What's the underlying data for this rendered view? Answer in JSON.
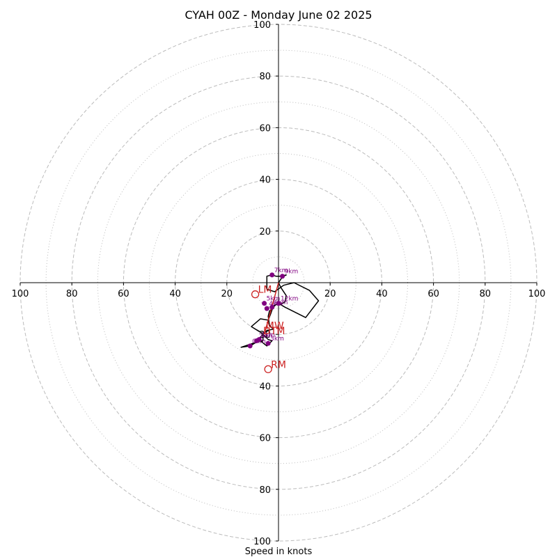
{
  "chart_data": {
    "type": "scatter",
    "title": "CYAH 00Z - Monday June 02 2025",
    "xlabel": "Speed in knots",
    "axis_range": [
      -100,
      100
    ],
    "x_ticks": [
      {
        "value": -100,
        "label": "100"
      },
      {
        "value": -80,
        "label": "80"
      },
      {
        "value": -60,
        "label": "60"
      },
      {
        "value": -40,
        "label": "40"
      },
      {
        "value": -20,
        "label": "20"
      },
      {
        "value": 20,
        "label": "20"
      },
      {
        "value": 40,
        "label": "40"
      },
      {
        "value": 60,
        "label": "60"
      },
      {
        "value": 80,
        "label": "80"
      },
      {
        "value": 100,
        "label": "100"
      }
    ],
    "y_ticks": [
      {
        "value": 100,
        "label": "100"
      },
      {
        "value": 80,
        "label": "80"
      },
      {
        "value": 60,
        "label": "60"
      },
      {
        "value": 40,
        "label": "40"
      },
      {
        "value": 20,
        "label": "20"
      },
      {
        "value": -20,
        "label": "20"
      },
      {
        "value": -40,
        "label": "40"
      },
      {
        "value": -60,
        "label": "60"
      },
      {
        "value": -80,
        "label": "80"
      },
      {
        "value": -100,
        "label": "100"
      }
    ],
    "rings_major": [
      20,
      40,
      60,
      80,
      100
    ],
    "rings_minor": [
      10,
      30,
      50,
      70,
      90
    ],
    "colors": {
      "hodograph": "#000000",
      "height_markers": "#800080",
      "storm_motion": "#cc2222",
      "rings": "#bbbbbb",
      "axes": "#000000"
    },
    "hodograph": [
      [
        -4.5,
        0
      ],
      [
        -4.5,
        -2.5
      ],
      [
        -1.5,
        -3.5
      ],
      [
        2,
        -1
      ],
      [
        6,
        0
      ],
      [
        12,
        -3
      ],
      [
        15.5,
        -7
      ],
      [
        10.5,
        -13.5
      ],
      [
        2.5,
        -9.5
      ],
      [
        0,
        -8
      ],
      [
        -2,
        -9
      ],
      [
        -3,
        -12
      ],
      [
        -4,
        -14.5
      ],
      [
        -7,
        -14
      ],
      [
        -10.5,
        -17
      ],
      [
        -6.5,
        -19.5
      ],
      [
        -5,
        -21
      ],
      [
        -4,
        -22
      ],
      [
        -2.5,
        -22.5
      ],
      [
        -4.5,
        -24.5
      ],
      [
        -7,
        -22.5
      ],
      [
        -10,
        -23.5
      ],
      [
        -14.5,
        -25
      ],
      [
        -11,
        -24.5
      ],
      [
        -8.5,
        -23
      ],
      [
        -6,
        -22.5
      ],
      [
        -6,
        -20
      ],
      [
        -4.5,
        -18.5
      ],
      [
        -2,
        -18
      ],
      [
        -3.5,
        -16.5
      ],
      [
        -4,
        -13
      ],
      [
        -3.5,
        -11
      ],
      [
        -1,
        -8.5
      ],
      [
        1.5,
        -8
      ],
      [
        2.5,
        -7.5
      ],
      [
        3,
        -5
      ],
      [
        1,
        -2
      ],
      [
        0,
        0
      ],
      [
        1,
        1.5
      ],
      [
        2,
        2.5
      ],
      [
        3,
        3
      ],
      [
        1,
        2.5
      ],
      [
        -1,
        2.5
      ],
      [
        -2.5,
        3
      ],
      [
        -4.5,
        2.5
      ],
      [
        -4.5,
        0
      ]
    ],
    "height_points": [
      {
        "label": "7km",
        "x": -2.5,
        "y": 3.0
      },
      {
        "label": "9km",
        "x": 1.5,
        "y": 2.5
      },
      {
        "label": "12km",
        "x": 0.0,
        "y": -8.0
      },
      {
        "label": "5km",
        "x": -5.5,
        "y": -8.0
      },
      {
        "label": "4km",
        "x": -4.5,
        "y": -10.0
      },
      {
        "label": "6km",
        "x": -2.5,
        "y": -9.5
      },
      {
        "label": "1km",
        "x": -7.5,
        "y": -22.0
      },
      {
        "label": "2km",
        "x": -8.5,
        "y": -22.5
      },
      {
        "label": "3km",
        "x": -4.0,
        "y": -23.5
      },
      {
        "label": "0km",
        "x": -11.0,
        "y": -24.5
      }
    ],
    "storm_motion_points": [
      {
        "label": "LM",
        "x": -9.0,
        "y": -4.5,
        "marker": "open-circle"
      },
      {
        "label": "RM",
        "x": -4.0,
        "y": -33.5,
        "marker": "open-circle"
      },
      {
        "label": "MW",
        "x": -6.0,
        "y": -18.5,
        "marker": "none"
      },
      {
        "label": "DTM",
        "x": -7.0,
        "y": -20.5,
        "marker": "none"
      }
    ],
    "shear_vector": {
      "x1": 0.0,
      "y1": 0.0,
      "x2": -5.5,
      "y2": -20.0
    }
  }
}
